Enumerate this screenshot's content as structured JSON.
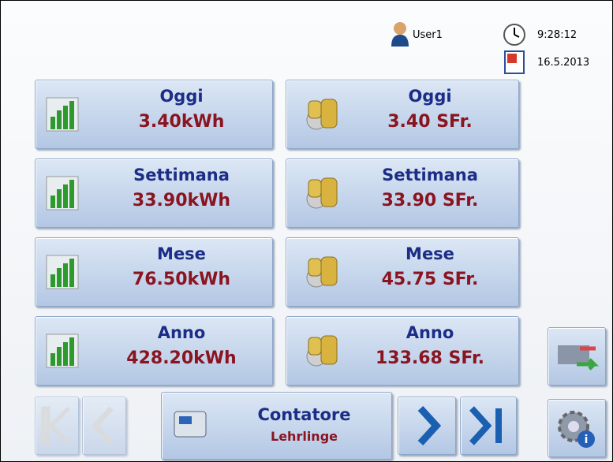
{
  "header": {
    "user": "User1",
    "time": "9:28:12",
    "date": "16.5.2013"
  },
  "tiles": [
    {
      "energy": {
        "label": "Oggi",
        "value": "3.40kWh"
      },
      "cost": {
        "label": "Oggi",
        "value": "3.40 SFr."
      }
    },
    {
      "energy": {
        "label": "Settimana",
        "value": "33.90kWh"
      },
      "cost": {
        "label": "Settimana",
        "value": "33.90 SFr."
      }
    },
    {
      "energy": {
        "label": "Mese",
        "value": "76.50kWh"
      },
      "cost": {
        "label": "Mese",
        "value": "45.75 SFr."
      }
    },
    {
      "energy": {
        "label": "Anno",
        "value": "428.20kWh"
      },
      "cost": {
        "label": "Anno",
        "value": "133.68 SFr."
      }
    }
  ],
  "meter": {
    "title": "Contatore",
    "name": "Lehrlinge"
  }
}
